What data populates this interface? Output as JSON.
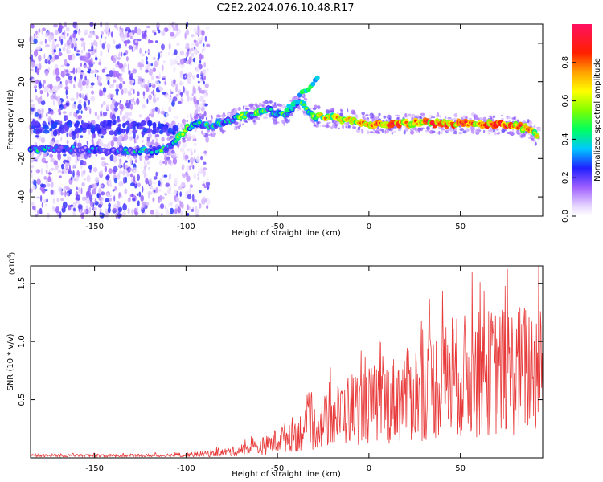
{
  "title": "C2E2.2024.076.10.48.R17",
  "chart_data": [
    {
      "type": "heatmap",
      "title": "C2E2.2024.076.10.48.R17",
      "xlabel": "Height of straight line (km)",
      "ylabel": "Frequency (Hz)",
      "xlim": [
        -185,
        95
      ],
      "ylim": [
        -50,
        50
      ],
      "xticks": [
        -150,
        -100,
        -50,
        0,
        50
      ],
      "yticks": [
        -40,
        -20,
        0,
        20,
        40
      ],
      "colorbar": {
        "label": "Normalized spectral amplitude",
        "range": [
          0,
          1
        ],
        "ticks": [
          "0.0",
          "0.2",
          "0.4",
          "0.6",
          "0.8"
        ]
      },
      "ridge": [
        {
          "x": -175,
          "y": -15,
          "amp": 0.3
        },
        {
          "x": -160,
          "y": -15,
          "amp": 0.25
        },
        {
          "x": -140,
          "y": -16,
          "amp": 0.25
        },
        {
          "x": -125,
          "y": -16,
          "amp": 0.3
        },
        {
          "x": -118,
          "y": -16,
          "amp": 0.4
        },
        {
          "x": -110,
          "y": -15,
          "amp": 0.4
        },
        {
          "x": -100,
          "y": -5,
          "amp": 0.45
        },
        {
          "x": -95,
          "y": -2,
          "amp": 0.45
        },
        {
          "x": -85,
          "y": -3,
          "amp": 0.4
        },
        {
          "x": -75,
          "y": 0,
          "amp": 0.45
        },
        {
          "x": -65,
          "y": 3,
          "amp": 0.5
        },
        {
          "x": -55,
          "y": 5,
          "amp": 0.45
        },
        {
          "x": -45,
          "y": 2,
          "amp": 0.45
        },
        {
          "x": -38,
          "y": 10,
          "amp": 0.4
        },
        {
          "x": -30,
          "y": 2,
          "amp": 0.6
        },
        {
          "x": -20,
          "y": 1,
          "amp": 0.7
        },
        {
          "x": -10,
          "y": 0,
          "amp": 0.75
        },
        {
          "x": 0,
          "y": -2,
          "amp": 0.8
        },
        {
          "x": 10,
          "y": -2,
          "amp": 0.85
        },
        {
          "x": 20,
          "y": -2,
          "amp": 0.8
        },
        {
          "x": 30,
          "y": -1,
          "amp": 0.8
        },
        {
          "x": 40,
          "y": -2,
          "amp": 0.85
        },
        {
          "x": 50,
          "y": -2,
          "amp": 0.8
        },
        {
          "x": 60,
          "y": -2,
          "amp": 0.85
        },
        {
          "x": 70,
          "y": -2,
          "amp": 0.9
        },
        {
          "x": 80,
          "y": -3,
          "amp": 0.85
        },
        {
          "x": 88,
          "y": -5,
          "amp": 0.8
        },
        {
          "x": 93,
          "y": -9,
          "amp": 0.6
        }
      ]
    },
    {
      "type": "line",
      "xlabel": "Height of straight line (km)",
      "ylabel": "SNR (10 * v/v)",
      "yscale_label": "(x10",
      "yscale_exp": "4",
      "xlim": [
        -185,
        95
      ],
      "ylim": [
        0,
        1.65
      ],
      "xticks": [
        -150,
        -100,
        -50,
        0,
        50
      ],
      "yticks": [
        "0.5",
        "1.0",
        "1.5"
      ],
      "color": "#e83a3a",
      "envelope_x": [
        -185,
        -150,
        -120,
        -100,
        -85,
        -70,
        -55,
        -45,
        -30,
        -20,
        -10,
        0,
        10,
        20,
        30,
        40,
        50,
        60,
        70,
        80,
        95
      ],
      "envelope_y": [
        0.03,
        0.03,
        0.03,
        0.04,
        0.06,
        0.1,
        0.18,
        0.3,
        0.42,
        0.55,
        0.68,
        0.72,
        0.78,
        0.85,
        0.95,
        1.05,
        1.12,
        1.15,
        1.18,
        1.2,
        1.25
      ]
    }
  ]
}
